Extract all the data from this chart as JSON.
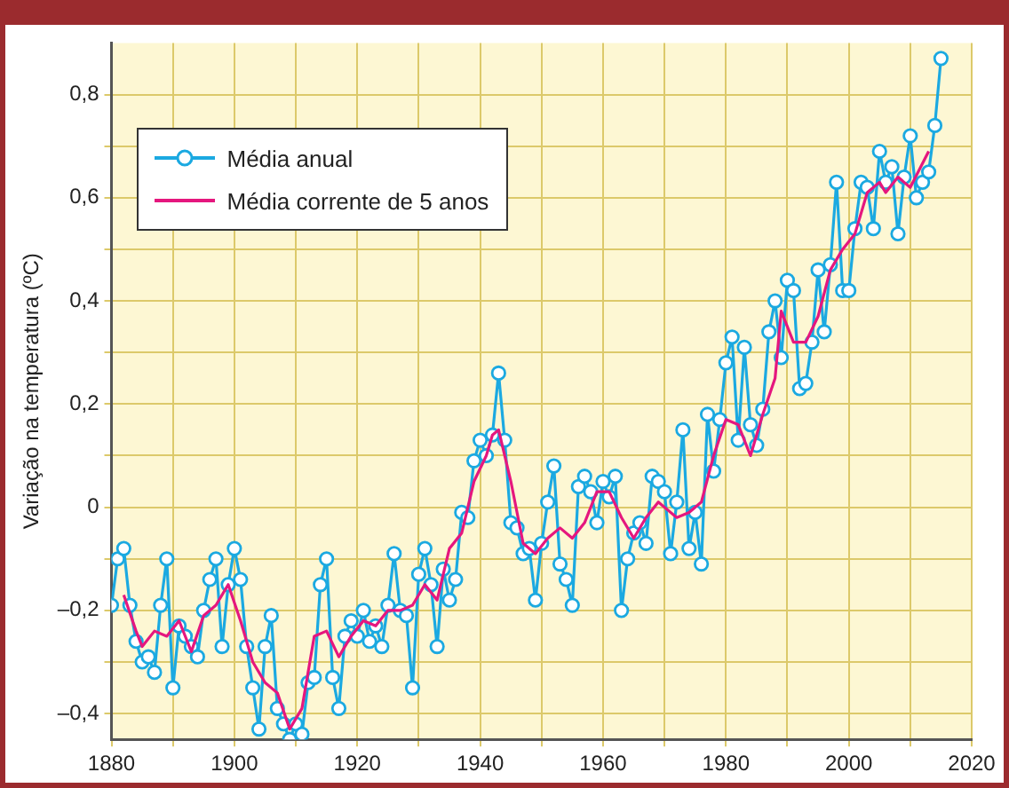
{
  "chart_data": {
    "type": "line",
    "ylabel": "Variação na temperatura (ºC)",
    "xlim": [
      1880,
      2020
    ],
    "ylim": [
      -0.45,
      0.9
    ],
    "xticks": [
      1880,
      {
        "value": 1890,
        "label": null
      },
      1900,
      {
        "value": 1910,
        "label": null
      },
      1920,
      {
        "value": 1930,
        "label": null
      },
      1940,
      {
        "value": 1950,
        "label": null
      },
      1960,
      {
        "value": 1970,
        "label": null
      },
      1980,
      {
        "value": 1990,
        "label": null
      },
      2000,
      {
        "value": 2010,
        "label": null
      },
      2020
    ],
    "yticks": [
      {
        "value": -0.4,
        "label": "–0,4"
      },
      {
        "value": -0.3,
        "label": null
      },
      {
        "value": -0.2,
        "label": "–0,2"
      },
      {
        "value": -0.1,
        "label": null
      },
      0,
      {
        "value": 0.1,
        "label": null
      },
      {
        "value": 0.2,
        "label": "0,2"
      },
      {
        "value": 0.3,
        "label": null
      },
      {
        "value": 0.4,
        "label": "0,4"
      },
      {
        "value": 0.5,
        "label": null
      },
      {
        "value": 0.6,
        "label": "0,6"
      },
      {
        "value": 0.7,
        "label": null
      },
      {
        "value": 0.8,
        "label": "0,8"
      }
    ],
    "grid": true,
    "legend": "top left",
    "series": [
      {
        "name": "Média anual",
        "color": "#1ba9e1",
        "marker": "circle",
        "x": [
          1880,
          1881,
          1882,
          1883,
          1884,
          1885,
          1886,
          1887,
          1888,
          1889,
          1890,
          1891,
          1892,
          1893,
          1894,
          1895,
          1896,
          1897,
          1898,
          1899,
          1900,
          1901,
          1902,
          1903,
          1904,
          1905,
          1906,
          1907,
          1908,
          1909,
          1910,
          1911,
          1912,
          1913,
          1914,
          1915,
          1916,
          1917,
          1918,
          1919,
          1920,
          1921,
          1922,
          1923,
          1924,
          1925,
          1926,
          1927,
          1928,
          1929,
          1930,
          1931,
          1932,
          1933,
          1934,
          1935,
          1936,
          1937,
          1938,
          1939,
          1940,
          1941,
          1942,
          1943,
          1944,
          1945,
          1946,
          1947,
          1948,
          1949,
          1950,
          1951,
          1952,
          1953,
          1954,
          1955,
          1956,
          1957,
          1958,
          1959,
          1960,
          1961,
          1962,
          1963,
          1964,
          1965,
          1966,
          1967,
          1968,
          1969,
          1970,
          1971,
          1972,
          1973,
          1974,
          1975,
          1976,
          1977,
          1978,
          1979,
          1980,
          1981,
          1982,
          1983,
          1984,
          1985,
          1986,
          1987,
          1988,
          1989,
          1990,
          1991,
          1992,
          1993,
          1994,
          1995,
          1996,
          1997,
          1998,
          1999,
          2000,
          2001,
          2002,
          2003,
          2004,
          2005,
          2006,
          2007,
          2008,
          2009,
          2010,
          2011,
          2012,
          2013,
          2014,
          2015
        ],
        "values": [
          -0.19,
          -0.1,
          -0.08,
          -0.19,
          -0.26,
          -0.3,
          -0.29,
          -0.32,
          -0.19,
          -0.1,
          -0.35,
          -0.23,
          -0.25,
          -0.27,
          -0.29,
          -0.2,
          -0.14,
          -0.1,
          -0.27,
          -0.15,
          -0.08,
          -0.14,
          -0.27,
          -0.35,
          -0.43,
          -0.27,
          -0.21,
          -0.39,
          -0.42,
          -0.45,
          -0.42,
          -0.44,
          -0.34,
          -0.33,
          -0.15,
          -0.1,
          -0.33,
          -0.39,
          -0.25,
          -0.22,
          -0.25,
          -0.2,
          -0.26,
          -0.23,
          -0.27,
          -0.19,
          -0.09,
          -0.2,
          -0.21,
          -0.35,
          -0.13,
          -0.08,
          -0.15,
          -0.27,
          -0.12,
          -0.18,
          -0.14,
          -0.01,
          -0.02,
          0.09,
          0.13,
          0.1,
          0.14,
          0.26,
          0.13,
          -0.03,
          -0.04,
          -0.09,
          -0.08,
          -0.18,
          -0.07,
          0.01,
          0.08,
          -0.11,
          -0.14,
          -0.19,
          0.04,
          0.06,
          0.03,
          -0.03,
          0.05,
          0.02,
          0.06,
          -0.2,
          -0.1,
          -0.05,
          -0.03,
          -0.07,
          0.06,
          0.05,
          0.03,
          -0.09,
          0.01,
          0.15,
          -0.08,
          -0.01,
          -0.11,
          0.18,
          0.07,
          0.17,
          0.28,
          0.33,
          0.13,
          0.31,
          0.16,
          0.12,
          0.19,
          0.34,
          0.4,
          0.29,
          0.44,
          0.42,
          0.23,
          0.24,
          0.32,
          0.46,
          0.34,
          0.47,
          0.63,
          0.42,
          0.42,
          0.54,
          0.63,
          0.62,
          0.54,
          0.69,
          0.63,
          0.66,
          0.53,
          0.64,
          0.72,
          0.6,
          0.63,
          0.65,
          0.74,
          0.87
        ]
      },
      {
        "name": "Média corrente de 5 anos",
        "color": "#e5177e",
        "marker": "none",
        "x": [
          1882,
          1884,
          1885,
          1887,
          1889,
          1891,
          1893,
          1895,
          1897,
          1899,
          1901,
          1903,
          1905,
          1907,
          1909,
          1911,
          1913,
          1915,
          1917,
          1919,
          1921,
          1923,
          1925,
          1927,
          1929,
          1931,
          1933,
          1935,
          1937,
          1939,
          1941,
          1942,
          1943,
          1945,
          1947,
          1949,
          1951,
          1953,
          1955,
          1957,
          1959,
          1961,
          1963,
          1965,
          1967,
          1969,
          1970,
          1972,
          1974,
          1976,
          1978,
          1980,
          1982,
          1984,
          1986,
          1988,
          1989,
          1991,
          1993,
          1995,
          1997,
          1999,
          2001,
          2003,
          2005,
          2006,
          2008,
          2010,
          2013
        ],
        "values": [
          -0.17,
          -0.24,
          -0.27,
          -0.24,
          -0.25,
          -0.22,
          -0.28,
          -0.21,
          -0.19,
          -0.15,
          -0.22,
          -0.3,
          -0.34,
          -0.36,
          -0.43,
          -0.39,
          -0.25,
          -0.24,
          -0.29,
          -0.25,
          -0.22,
          -0.23,
          -0.2,
          -0.2,
          -0.19,
          -0.15,
          -0.18,
          -0.08,
          -0.05,
          0.05,
          0.1,
          0.14,
          0.15,
          0.05,
          -0.07,
          -0.09,
          -0.06,
          -0.04,
          -0.06,
          -0.03,
          0.03,
          0.03,
          -0.02,
          -0.06,
          -0.02,
          0.01,
          0.0,
          -0.02,
          -0.01,
          0.01,
          0.1,
          0.17,
          0.16,
          0.1,
          0.18,
          0.25,
          0.38,
          0.32,
          0.32,
          0.37,
          0.46,
          0.5,
          0.53,
          0.61,
          0.63,
          0.61,
          0.64,
          0.62,
          0.69
        ]
      }
    ]
  }
}
